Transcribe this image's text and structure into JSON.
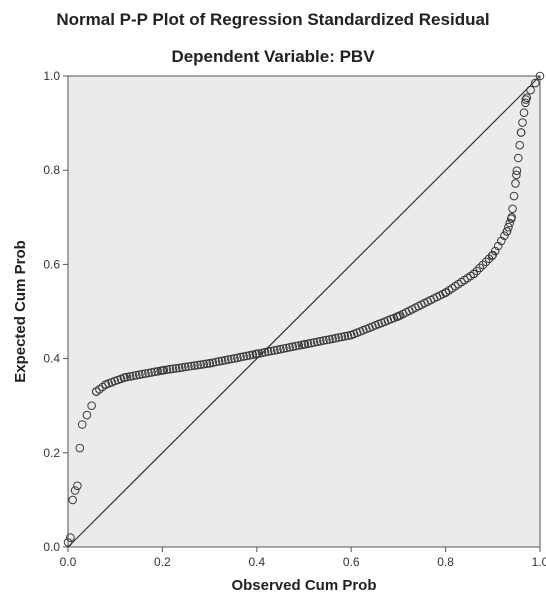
{
  "chart_data": {
    "type": "scatter",
    "title": "Normal P-P Plot of Regression Standardized Residual",
    "subtitle": "Dependent Variable: PBV",
    "xlabel": "Observed Cum Prob",
    "ylabel": "Expected Cum Prob",
    "xlim": [
      0,
      1
    ],
    "ylim": [
      0,
      1
    ],
    "xticks": [
      "0.0",
      "0.2",
      "0.4",
      "0.6",
      "0.8",
      "1.0"
    ],
    "yticks": [
      "0.0",
      "0.2",
      "0.4",
      "0.6",
      "0.8",
      "1.0"
    ],
    "grid": false,
    "reference_line": [
      [
        0,
        0
      ],
      [
        1,
        1
      ]
    ],
    "colors": {
      "plot_background": "#ebebeb",
      "marker": "#3a3a3a",
      "line": "#333333"
    },
    "anchors": [
      [
        0.0,
        0.01
      ],
      [
        0.005,
        0.02
      ],
      [
        0.01,
        0.1
      ],
      [
        0.015,
        0.12
      ],
      [
        0.02,
        0.13
      ],
      [
        0.025,
        0.21
      ],
      [
        0.03,
        0.26
      ],
      [
        0.04,
        0.28
      ],
      [
        0.05,
        0.3
      ],
      [
        0.06,
        0.33
      ],
      [
        0.08,
        0.345
      ],
      [
        0.12,
        0.36
      ],
      [
        0.2,
        0.375
      ],
      [
        0.3,
        0.39
      ],
      [
        0.4,
        0.41
      ],
      [
        0.5,
        0.43
      ],
      [
        0.6,
        0.45
      ],
      [
        0.7,
        0.49
      ],
      [
        0.8,
        0.54
      ],
      [
        0.86,
        0.58
      ],
      [
        0.9,
        0.62
      ],
      [
        0.93,
        0.67
      ],
      [
        0.94,
        0.7
      ],
      [
        0.95,
        0.79
      ],
      [
        0.96,
        0.88
      ],
      [
        0.97,
        0.95
      ],
      [
        0.98,
        0.97
      ],
      [
        0.99,
        0.985
      ],
      [
        1.0,
        1.0
      ]
    ]
  }
}
